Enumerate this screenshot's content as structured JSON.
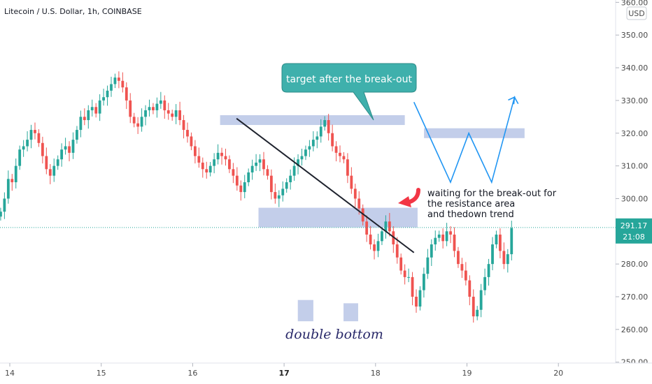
{
  "header": {
    "title": "Litecoin / U.S. Dollar, 1h, COINBASE"
  },
  "currency_badge": "USD",
  "price_tag": {
    "price": "291.17",
    "countdown": "21:08",
    "value": 291.17,
    "color": "#26a69a"
  },
  "colors": {
    "up": "#26a69a",
    "down": "#ef5350",
    "zone": "#b8c6e6",
    "trendline": "#1e222d",
    "projection": "#2196f3",
    "callout": "#3fb0ac",
    "arrow": "#f23645"
  },
  "annotations": {
    "target_label": "target after the break-out",
    "waiting_line1": "waiting for the break-out for",
    "waiting_line2": "the resistance area",
    "waiting_line3": "and thedown trend",
    "pattern_label": "double bottom"
  },
  "chart_data": {
    "type": "candlestick",
    "title": "Litecoin / U.S. Dollar, 1h, COINBASE",
    "ylim": [
      250,
      360
    ],
    "y_ticks": [
      {
        "value": 250,
        "label": "250.00"
      },
      {
        "value": 260,
        "label": "260.00"
      },
      {
        "value": 270,
        "label": "270.00"
      },
      {
        "value": 280,
        "label": "280.00"
      },
      {
        "value": 290,
        "label": "290.00"
      },
      {
        "value": 300,
        "label": "300.00"
      },
      {
        "value": 310,
        "label": "310.00"
      },
      {
        "value": 320,
        "label": "320.00"
      },
      {
        "value": 330,
        "label": "330.00"
      },
      {
        "value": 340,
        "label": "340.00"
      },
      {
        "value": 350,
        "label": "350.00"
      },
      {
        "value": 360,
        "label": "360.00"
      }
    ],
    "x_ticks": [
      {
        "day": 14,
        "label": "14",
        "bold": false
      },
      {
        "day": 15,
        "label": "15",
        "bold": false
      },
      {
        "day": 16,
        "label": "16",
        "bold": false
      },
      {
        "day": 17,
        "label": "17",
        "bold": true
      },
      {
        "day": 18,
        "label": "18",
        "bold": false
      },
      {
        "day": 19,
        "label": "19",
        "bold": false
      },
      {
        "day": 20,
        "label": "20",
        "bold": false
      }
    ],
    "x_start_day": 13.9,
    "candle_step_days": 0.0417,
    "closes": [
      296,
      300,
      306,
      305,
      310,
      315,
      316,
      318,
      321,
      320,
      317,
      313,
      309,
      307,
      310,
      312,
      315,
      316,
      314,
      318,
      321,
      325,
      324,
      327,
      328,
      326,
      330,
      331,
      333,
      335,
      337,
      336,
      334,
      330,
      325,
      323,
      322,
      325,
      327,
      328,
      327,
      329,
      330,
      327,
      326,
      325,
      327,
      324,
      321,
      319,
      316,
      313,
      311,
      309,
      308,
      310,
      312,
      314,
      313,
      312,
      309,
      307,
      304,
      302,
      305,
      308,
      310,
      311,
      312,
      309,
      307,
      302,
      300,
      301,
      303,
      305,
      307,
      310,
      312,
      313,
      315,
      316,
      318,
      319,
      322,
      324,
      320,
      316,
      314,
      313,
      312,
      307,
      303,
      300,
      297,
      293,
      289,
      286,
      284,
      287,
      290,
      293,
      290,
      286,
      282,
      278,
      276,
      276,
      270,
      267,
      272,
      277,
      282,
      286,
      288,
      289,
      287,
      290,
      289,
      284,
      280,
      278,
      275,
      270,
      264,
      266,
      272,
      276,
      280,
      286,
      289,
      284,
      280,
      283,
      291
    ],
    "projection_path": [
      {
        "day": 18.42,
        "value": 329.5
      },
      {
        "day": 18.82,
        "value": 305
      },
      {
        "day": 19.02,
        "value": 320
      },
      {
        "day": 19.27,
        "value": 305
      },
      {
        "day": 19.52,
        "value": 331
      },
      {
        "day": 19.56,
        "value": 329
      }
    ],
    "trendline": [
      {
        "day": 16.48,
        "value": 324.5
      },
      {
        "day": 18.42,
        "value": 283.5
      }
    ],
    "resistance_zone": {
      "day_from": 16.72,
      "day_to": 18.46,
      "value_from": 291.2,
      "value_to": 297.2
    },
    "target_zone": {
      "day_from": 16.3,
      "day_to": 18.32,
      "value_from": 322.5,
      "value_to": 325.5
    },
    "future_zone": {
      "day_from": 18.53,
      "day_to": 19.63,
      "value_from": 318.5,
      "value_to": 321.5
    },
    "bottom_box_1": {
      "day_from": 17.15,
      "day_to": 17.32,
      "value_from": 262.5,
      "value_to": 269
    },
    "bottom_box_2": {
      "day_from": 17.65,
      "day_to": 17.81,
      "value_from": 262.5,
      "value_to": 268
    }
  }
}
